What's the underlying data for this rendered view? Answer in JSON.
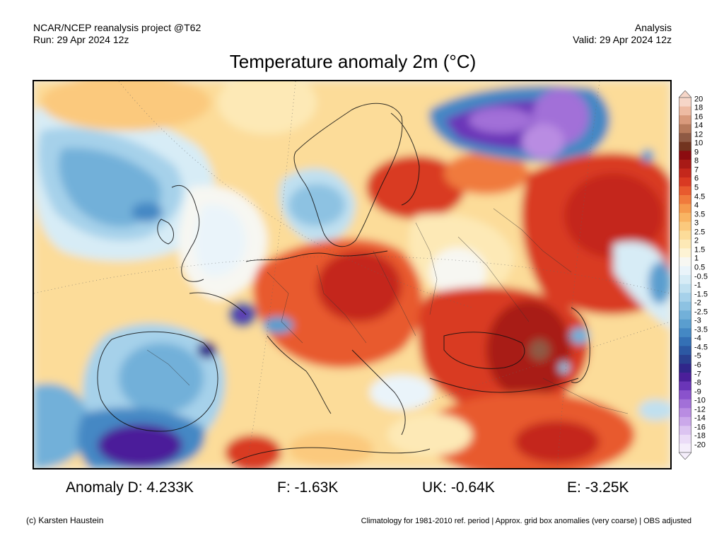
{
  "header": {
    "project": "NCAR/NCEP reanalysis project @T62",
    "run": "Run: 29 Apr 2024 12z",
    "type": "Analysis",
    "valid": "Valid: 29 Apr 2024 12z"
  },
  "title": "Temperature anomaly 2m (°C)",
  "colorbar": {
    "levels": [
      "20",
      "18",
      "16",
      "14",
      "12",
      "10",
      "9",
      "8",
      "7",
      "6",
      "5",
      "4.5",
      "4",
      "3.5",
      "3",
      "2.5",
      "2",
      "1.5",
      "1",
      "0.5",
      "-0.5",
      "-1",
      "-1.5",
      "-2",
      "-2.5",
      "-3",
      "-3.5",
      "-4",
      "-4.5",
      "-5",
      "-6",
      "-7",
      "-8",
      "-9",
      "-10",
      "-12",
      "-14",
      "-16",
      "-18",
      "-20"
    ],
    "colors": [
      "#f6d6c8",
      "#eebba3",
      "#d99a7c",
      "#b77a5c",
      "#8f5a44",
      "#72341f",
      "#8c0c10",
      "#a81a16",
      "#c4281c",
      "#d93a22",
      "#e85a2e",
      "#f07a3c",
      "#f59a4d",
      "#f9b463",
      "#fbc97d",
      "#fcdc99",
      "#fde9b6",
      "#fdf3d4",
      "#f7f7f2",
      "#eaf4fa",
      "#d7ecf6",
      "#c0e0f0",
      "#a6d1ea",
      "#8dc2e2",
      "#72b0d9",
      "#5a9ecf",
      "#4488c4",
      "#3470b5",
      "#2c58a3",
      "#2a4090",
      "#30268a",
      "#4b1f9a",
      "#6a35b8",
      "#8a52cc",
      "#a270d8",
      "#b98ce2",
      "#cba8ea",
      "#dcc4f1",
      "#ebdcf7",
      "#f5eefb"
    ]
  },
  "anomalies": {
    "d": "Anomaly D: 4.233K",
    "f": "F: -1.63K",
    "uk": "UK: -0.64K",
    "e": "E: -3.25K"
  },
  "footer": {
    "credit": "(c) Karsten Haustein",
    "climatology": "Climatology for 1981-2010 ref. period | Approx. grid box anomalies (very coarse) | OBS adjusted"
  }
}
